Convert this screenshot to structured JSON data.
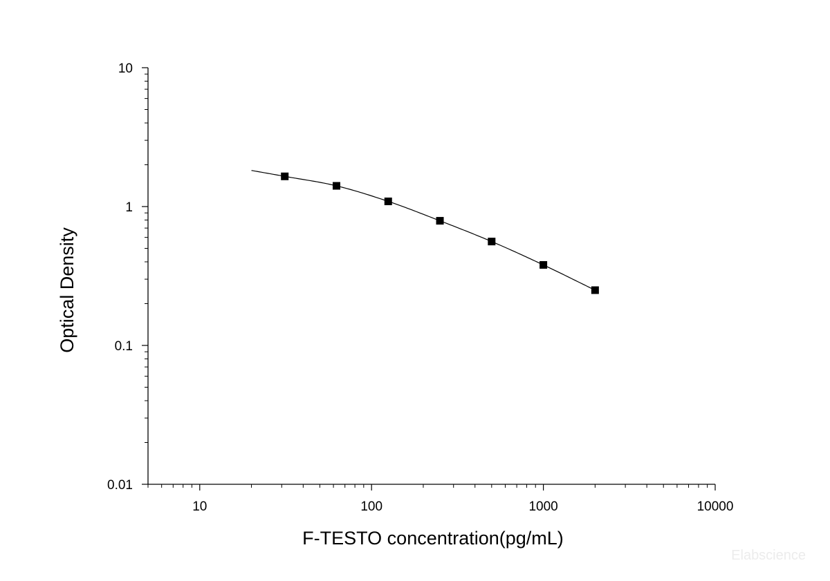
{
  "chart_data": {
    "type": "scatter",
    "xlabel": "F-TESTO concentration(pg/mL)",
    "ylabel": "Optical Density",
    "x_scale": "log",
    "y_scale": "log",
    "xlim": [
      5,
      10000
    ],
    "ylim": [
      0.01,
      10
    ],
    "x_ticks": [
      10,
      100,
      1000,
      10000
    ],
    "x_tick_labels": [
      "10",
      "100",
      "1000",
      "10000"
    ],
    "y_ticks": [
      0.01,
      0.1,
      1,
      10
    ],
    "y_tick_labels": [
      "0.01",
      "0.1",
      "1",
      "10"
    ],
    "grid": false,
    "legend": "none",
    "series": [
      {
        "marker": "square",
        "x": [
          31.25,
          62.5,
          125,
          250,
          500,
          1000,
          2000
        ],
        "y": [
          1.65,
          1.41,
          1.09,
          0.79,
          0.56,
          0.38,
          0.25
        ]
      }
    ],
    "fit_curve": {
      "x": [
        20,
        31.25,
        62.5,
        125,
        250,
        500,
        1000,
        2000
      ],
      "y": [
        1.82,
        1.65,
        1.41,
        1.09,
        0.79,
        0.56,
        0.38,
        0.25
      ]
    }
  },
  "watermark": "Elabscience",
  "colors": {
    "axis": "#000000",
    "marker": "#000000",
    "curve": "#000000",
    "watermark": "#ececec"
  }
}
